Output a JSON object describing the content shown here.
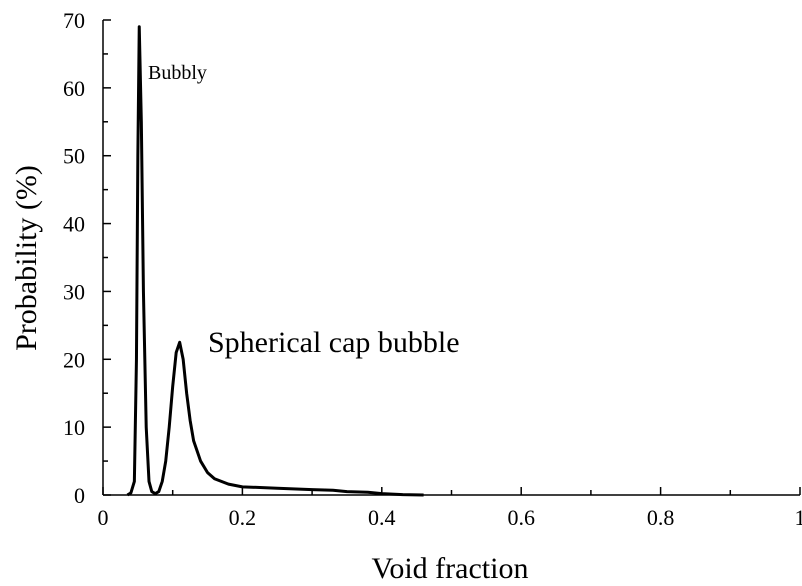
{
  "chart_data": {
    "type": "line",
    "x_label": "Void fraction",
    "y_label": "Probability (%)",
    "annotations": [
      "Bubbly",
      "Spherical cap bubble"
    ],
    "xlim": [
      0,
      1
    ],
    "ylim": [
      0,
      70
    ],
    "xticks": [
      0,
      0.2,
      0.4,
      0.6,
      0.8,
      1
    ],
    "yticks": [
      0,
      10,
      20,
      30,
      40,
      50,
      60,
      70
    ],
    "xminorticks": [
      0.1,
      0.3,
      0.5,
      0.7,
      0.9
    ],
    "yminorticks": [
      5,
      15,
      25,
      35,
      45,
      55,
      65
    ],
    "series": [
      {
        "color": "#000000",
        "x": [
          0.035,
          0.04,
          0.045,
          0.048,
          0.05,
          0.052,
          0.055,
          0.058,
          0.062,
          0.066,
          0.07,
          0.075,
          0.08,
          0.085,
          0.09,
          0.095,
          0.1,
          0.105,
          0.11,
          0.115,
          0.12,
          0.125,
          0.13,
          0.14,
          0.15,
          0.16,
          0.18,
          0.2,
          0.25,
          0.3,
          0.33,
          0.35,
          0.38,
          0.4,
          0.43,
          0.46
        ],
        "values": [
          0,
          0.3,
          2,
          20,
          50,
          69,
          55,
          30,
          10,
          2,
          0.5,
          0.2,
          0.5,
          2,
          5,
          10,
          16,
          21,
          22.5,
          20,
          15,
          11,
          8,
          5,
          3.3,
          2.4,
          1.6,
          1.2,
          1.0,
          0.8,
          0.7,
          0.5,
          0.4,
          0.2,
          0.05,
          0
        ]
      }
    ]
  }
}
